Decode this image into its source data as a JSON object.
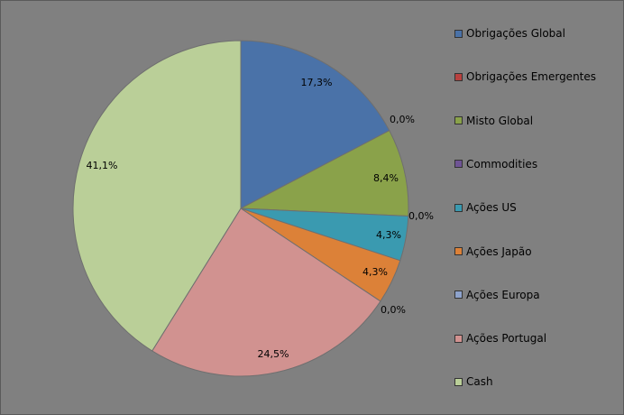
{
  "chart_data": {
    "type": "pie",
    "title": "",
    "legend_position": "right",
    "start_angle_deg": 0,
    "direction": "clockwise",
    "slices": [
      {
        "name": "Obrigações Global",
        "value": 17.3,
        "label": "17,3%",
        "color": "#4a72a8"
      },
      {
        "name": "Obrigações Emergentes",
        "value": 0.0,
        "label": "0,0%",
        "color": "#b9413f"
      },
      {
        "name": "Misto Global",
        "value": 8.4,
        "label": "8,4%",
        "color": "#8aa24a"
      },
      {
        "name": "Commodities",
        "value": 0.0,
        "label": "0,0%",
        "color": "#6f5495"
      },
      {
        "name": "Ações US",
        "value": 4.3,
        "label": "4,3%",
        "color": "#3a9ab0"
      },
      {
        "name": "Ações Japão",
        "value": 4.3,
        "label": "4,3%",
        "color": "#dc8138"
      },
      {
        "name": "Ações Europa",
        "value": 0.0,
        "label": "0,0%",
        "color": "#8ea3cc"
      },
      {
        "name": "Ações Portugal",
        "value": 24.5,
        "label": "24,5%",
        "color": "#d19290"
      },
      {
        "name": "Cash",
        "value": 41.1,
        "label": "41,1%",
        "color": "#bacf98"
      }
    ]
  }
}
